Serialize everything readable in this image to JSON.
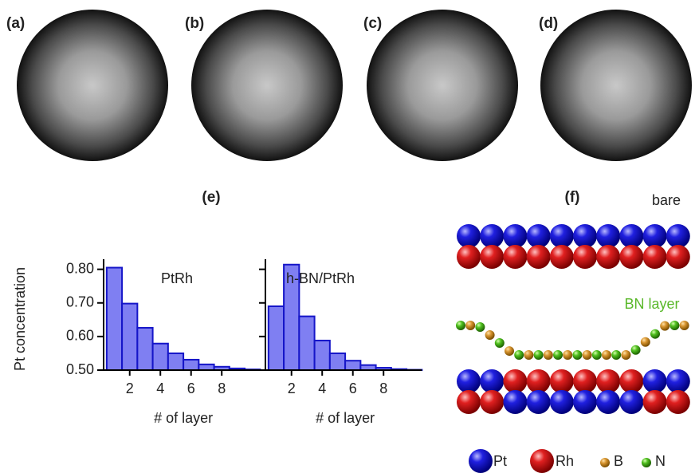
{
  "panel_labels": [
    "(a)",
    "(b)",
    "(c)",
    "(d)",
    "(e)",
    "(f)"
  ],
  "chart_data": [
    {
      "type": "bar",
      "annotation": "PtRh",
      "ylabel": "Pt concentration",
      "xlabel": "# of layer",
      "x": [
        1,
        2,
        3,
        4,
        5,
        6,
        7,
        8,
        9,
        10
      ],
      "values": [
        0.805,
        0.698,
        0.626,
        0.579,
        0.55,
        0.531,
        0.517,
        0.51,
        0.505,
        0.502
      ],
      "xlim": [
        0.3,
        10.5
      ],
      "ylim": [
        0.5,
        0.83
      ],
      "xticks": [
        2,
        4,
        6,
        8
      ],
      "yticks": [
        {
          "value": 0.5,
          "label": "0.50"
        },
        {
          "value": 0.6,
          "label": "0.60"
        },
        {
          "value": 0.7,
          "label": "0.70"
        },
        {
          "value": 0.8,
          "label": "0.80"
        }
      ],
      "ytick_labels": true,
      "color": "#7f7ff2",
      "edge_color": "#1515c8"
    },
    {
      "type": "bar",
      "annotation": "h-BN/PtRh",
      "xlabel": "# of layer",
      "x": [
        1,
        2,
        3,
        4,
        5,
        6,
        7,
        8,
        9,
        10
      ],
      "values": [
        0.69,
        0.814,
        0.66,
        0.588,
        0.55,
        0.528,
        0.515,
        0.507,
        0.503,
        0.501
      ],
      "xlim": [
        0.3,
        10.5
      ],
      "ylim": [
        0.5,
        0.83
      ],
      "xticks": [
        2,
        4,
        6,
        8
      ],
      "yticks": [
        0.5,
        0.6,
        0.7,
        0.8
      ],
      "ytick_labels": false,
      "color": "#7f7ff2",
      "edge_color": "#1515c8"
    }
  ],
  "diagram": {
    "labels": [
      "bare",
      "BN layer"
    ],
    "legend": [
      "Pt",
      "Rh",
      "B",
      "N"
    ]
  }
}
